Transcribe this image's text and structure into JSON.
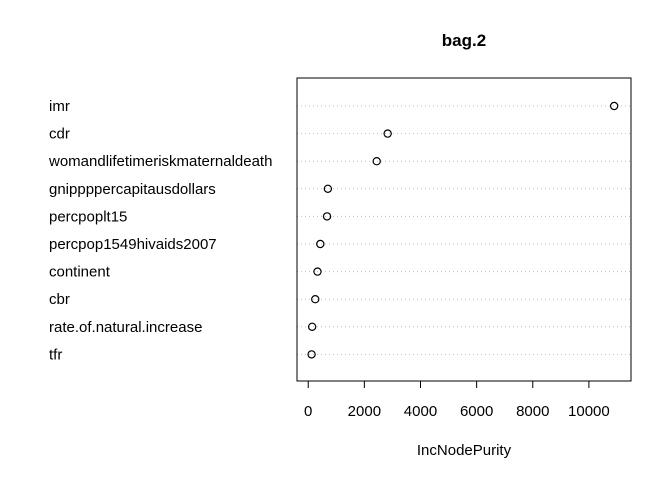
{
  "chart_data": {
    "type": "scatter",
    "subtype": "dotchart",
    "title": "bag.2",
    "xlabel": "IncNodePurity",
    "ylabel": "",
    "xlim": [
      -400,
      11500
    ],
    "xticks": [
      0,
      2000,
      4000,
      6000,
      8000,
      10000
    ],
    "grid": "horizontal-dotted",
    "categories": [
      "imr",
      "cdr",
      "womandlifetimeriskmaternaldeath",
      "gnippppercapitausdollars",
      "percpoplt15",
      "percpop1549hivaids2007",
      "continent",
      "cbr",
      "rate.of.natural.increase",
      "tfr"
    ],
    "values": [
      10900,
      2830,
      2440,
      700,
      670,
      430,
      330,
      250,
      140,
      120
    ]
  }
}
